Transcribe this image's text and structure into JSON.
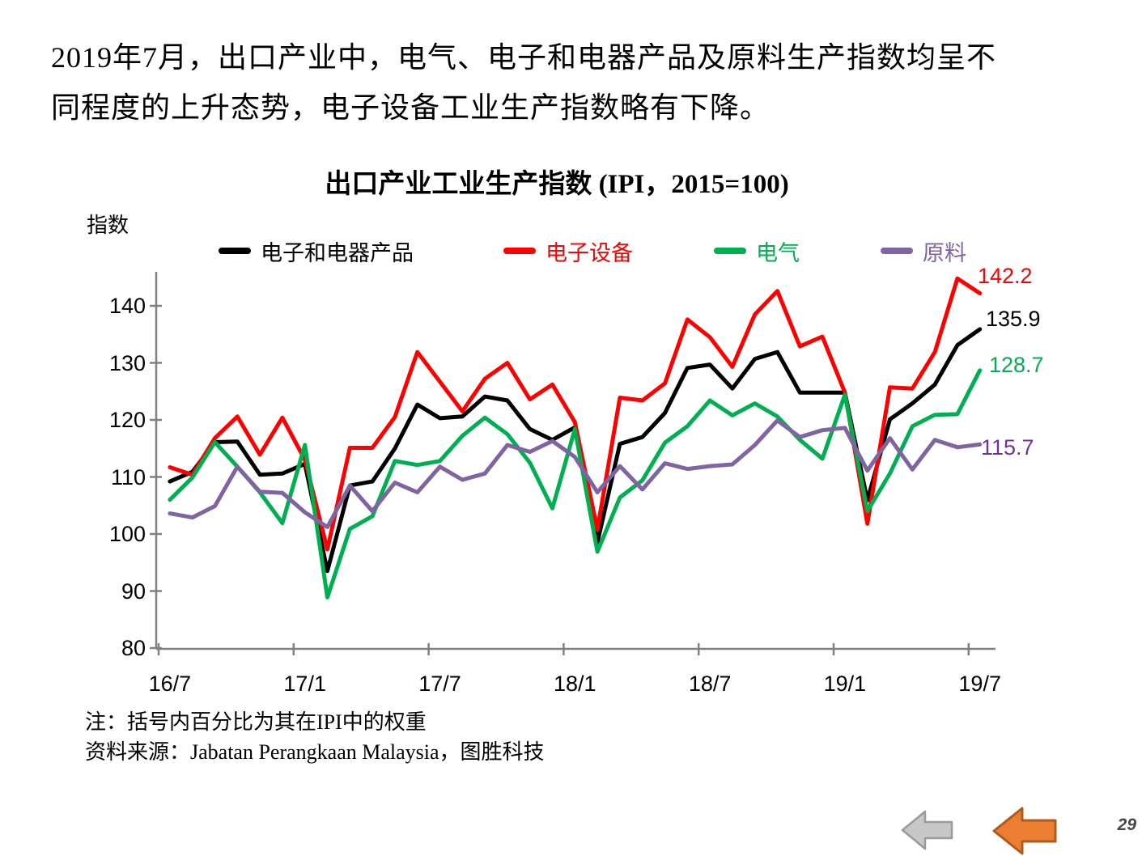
{
  "slide": {
    "paragraph_lines": [
      "2019年7月，出口产业中，电气、电子和电器产品及原料生产指数均呈不",
      "同程度的上升态势，电子设备工业生产指数略有下降。"
    ],
    "page_number": "29"
  },
  "chart": {
    "title": "出口产业工业生产指数 (IPI，2015=100)",
    "axis_unit_label": "指数",
    "y_ticks": [
      140,
      130,
      120,
      110,
      100,
      90,
      80
    ],
    "x_ticks": [
      "16/7",
      "17/1",
      "17/7",
      "18/1",
      "18/7",
      "19/1",
      "19/7"
    ]
  },
  "notes": {
    "line1": "注：括号内百分比为其在IPI中的权重",
    "line2": "资料来源：Jabatan Perangkaan Malaysia，图胜科技"
  },
  "nav": {
    "back_arrow_icon": "grey-left-arrow",
    "forward_arrow_icon": "orange-left-arrow"
  },
  "chart_data": {
    "type": "line",
    "title": "出口产业工业生产指数 (IPI，2015=100)",
    "ylabel": "指数",
    "ylim": [
      80,
      145
    ],
    "grid": false,
    "legend_position": "top",
    "x_tick_labels": [
      "16/7",
      "17/1",
      "17/7",
      "18/1",
      "18/7",
      "19/1",
      "19/7"
    ],
    "x": [
      "16/7",
      "16/8",
      "16/9",
      "16/10",
      "16/11",
      "16/12",
      "17/1",
      "17/2",
      "17/3",
      "17/4",
      "17/5",
      "17/6",
      "17/7",
      "17/8",
      "17/9",
      "17/10",
      "17/11",
      "17/12",
      "18/1",
      "18/2",
      "18/3",
      "18/4",
      "18/5",
      "18/6",
      "18/7",
      "18/8",
      "18/9",
      "18/10",
      "18/11",
      "18/12",
      "19/1",
      "19/2",
      "19/3",
      "19/4",
      "19/5",
      "19/6",
      "19/7"
    ],
    "series": [
      {
        "name": "电子和电器产品",
        "color": "#000000",
        "end_label": "135.9",
        "values": [
          109.2,
          110.9,
          116.1,
          116.2,
          110.4,
          110.6,
          112.3,
          93.5,
          108.5,
          109.2,
          115.0,
          122.7,
          120.3,
          120.6,
          124.1,
          123.4,
          118.4,
          116.5,
          118.7,
          98.5,
          115.8,
          117.0,
          121.2,
          129.1,
          129.7,
          125.5,
          130.7,
          131.9,
          124.8,
          124.8,
          124.8,
          105.9,
          120.1,
          122.9,
          126.2,
          133.1,
          135.9
        ]
      },
      {
        "name": "电子设备",
        "color": "#FF0000",
        "end_label": "142.2",
        "values": [
          111.7,
          110.4,
          116.8,
          120.6,
          113.9,
          120.4,
          113.0,
          97.3,
          115.1,
          115.1,
          120.5,
          131.9,
          126.7,
          121.5,
          127.2,
          130.0,
          123.6,
          126.2,
          119.6,
          100.8,
          123.9,
          123.4,
          126.4,
          137.6,
          134.5,
          129.3,
          138.5,
          142.6,
          132.9,
          134.6,
          124.8,
          101.8,
          125.7,
          125.5,
          131.9,
          144.8,
          142.2
        ]
      },
      {
        "name": "电气",
        "color": "#00B050",
        "end_label": "128.7",
        "values": [
          106.0,
          109.9,
          116.1,
          111.8,
          107.3,
          101.9,
          115.6,
          88.9,
          100.9,
          103.1,
          112.8,
          112.1,
          112.8,
          117.2,
          120.4,
          117.5,
          112.5,
          104.5,
          118.4,
          96.9,
          106.4,
          109.4,
          116.0,
          118.9,
          123.4,
          120.8,
          122.9,
          120.6,
          116.5,
          113.2,
          124.4,
          104.0,
          110.6,
          118.9,
          120.9,
          121.0,
          128.7
        ]
      },
      {
        "name": "原料",
        "color": "#8064A2",
        "end_label": "115.7",
        "values": [
          103.6,
          102.9,
          104.9,
          111.8,
          107.4,
          107.2,
          103.8,
          101.2,
          108.5,
          104.0,
          109.0,
          107.3,
          111.8,
          109.5,
          110.6,
          115.6,
          114.4,
          116.3,
          113.5,
          107.3,
          111.9,
          107.8,
          112.4,
          111.4,
          111.9,
          112.2,
          115.6,
          119.9,
          117.0,
          118.2,
          118.6,
          111.1,
          116.8,
          111.3,
          116.5,
          115.2,
          115.7
        ]
      }
    ]
  }
}
